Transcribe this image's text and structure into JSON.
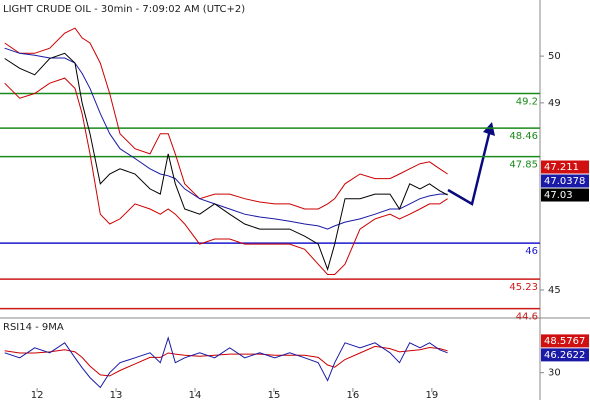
{
  "chart_data": [
    {
      "type": "line",
      "title": "LIGHT CRUDE OIL - 30min - 7:09:02 AM (UTC+2)",
      "x": [
        0.59,
        0.78,
        0.97,
        1.16,
        1.35,
        1.48,
        1.57,
        1.67,
        1.8,
        1.92,
        2.05,
        2.24,
        2.43,
        2.56,
        2.66,
        2.75,
        2.87,
        3.06,
        3.25,
        3.44,
        3.63,
        3.82,
        4.01,
        4.2,
        4.39,
        4.56,
        4.68,
        4.77,
        4.9,
        5.09,
        5.28,
        5.47,
        5.59,
        5.72,
        5.85,
        5.97,
        6.1,
        6.2
      ],
      "series": [
        {
          "color": "#cc0000",
          "values": [
            50.28,
            50.06,
            50.06,
            50.17,
            50.49,
            50.6,
            50.39,
            50.28,
            49.85,
            49.2,
            48.34,
            48.02,
            47.91,
            48.34,
            48.34,
            47.91,
            47.27,
            46.95,
            47.05,
            47.05,
            46.95,
            46.88,
            46.84,
            46.84,
            46.73,
            46.73,
            46.84,
            46.95,
            47.27,
            47.48,
            47.38,
            47.38,
            47.48,
            47.59,
            47.7,
            47.74,
            47.59,
            47.48
          ]
        },
        {
          "color": "#cc0000",
          "values": [
            49.42,
            49.1,
            49.2,
            49.42,
            49.53,
            49.31,
            48.77,
            47.91,
            46.62,
            46.41,
            46.52,
            46.84,
            46.73,
            46.62,
            46.73,
            46.62,
            46.41,
            45.98,
            46.09,
            46.09,
            45.98,
            45.98,
            45.98,
            45.98,
            45.87,
            45.55,
            45.33,
            45.33,
            45.55,
            46.3,
            46.52,
            46.62,
            46.52,
            46.62,
            46.73,
            46.84,
            46.84,
            46.95
          ]
        },
        {
          "color": "#1a1aa6",
          "values": [
            50.17,
            50.06,
            50.02,
            49.96,
            49.96,
            49.85,
            49.63,
            49.31,
            48.77,
            48.34,
            48.02,
            47.81,
            47.59,
            47.48,
            47.44,
            47.38,
            47.16,
            46.95,
            46.84,
            46.73,
            46.62,
            46.56,
            46.52,
            46.47,
            46.41,
            46.37,
            46.3,
            46.37,
            46.45,
            46.52,
            46.62,
            46.73,
            46.73,
            46.84,
            46.95,
            47.01,
            47.05,
            47.05
          ]
        },
        {
          "color": "#000000",
          "values": [
            49.95,
            49.74,
            49.6,
            49.95,
            50.06,
            49.85,
            49.0,
            48.34,
            47.27,
            47.48,
            47.59,
            47.48,
            47.16,
            47.05,
            47.91,
            47.27,
            46.73,
            46.62,
            46.84,
            46.62,
            46.41,
            46.3,
            46.3,
            46.3,
            46.15,
            45.98,
            45.44,
            45.98,
            46.95,
            46.95,
            47.05,
            47.05,
            46.73,
            47.27,
            47.16,
            47.27,
            47.12,
            47.03
          ]
        }
      ],
      "xlim": [
        0.53,
        7.37
      ],
      "ylim": [
        44.4,
        51.2
      ],
      "yticks": [
        45,
        49,
        50
      ],
      "levels": [
        {
          "value": 49.2,
          "color": "#1a8a1a"
        },
        {
          "value": 48.46,
          "color": "#1a8a1a"
        },
        {
          "value": 47.85,
          "color": "#1a8a1a"
        },
        {
          "value": 46,
          "color": "#1a1acc"
        },
        {
          "value": 45.23,
          "color": "#cc1a1a"
        },
        {
          "value": 44.6,
          "color": "#cc1a1a"
        }
      ],
      "markers": [
        {
          "value": 47.211,
          "color": "#d01010"
        },
        {
          "value": 47.0378,
          "color": "#1a1aa6"
        },
        {
          "value": 47.03,
          "color": "#000000"
        }
      ]
    },
    {
      "type": "line",
      "title": "RSI14 - 9MA",
      "x": [
        0.59,
        0.78,
        0.97,
        1.16,
        1.35,
        1.48,
        1.57,
        1.67,
        1.8,
        1.92,
        2.05,
        2.24,
        2.43,
        2.56,
        2.66,
        2.75,
        2.87,
        3.06,
        3.25,
        3.44,
        3.63,
        3.82,
        4.01,
        4.2,
        4.39,
        4.56,
        4.68,
        4.77,
        4.9,
        5.09,
        5.28,
        5.47,
        5.59,
        5.72,
        5.85,
        5.97,
        6.1,
        6.2
      ],
      "series": [
        {
          "color": "#cc0000",
          "values": [
            50,
            48,
            48,
            49,
            51,
            49,
            44,
            36,
            28,
            27,
            32,
            38,
            44,
            44,
            48,
            47,
            46,
            45,
            46,
            47,
            47,
            47,
            46,
            46,
            46,
            44,
            37,
            35,
            42,
            48,
            54,
            52,
            49,
            50,
            51,
            53,
            52,
            50
          ]
        },
        {
          "color": "#1a1aa6",
          "values": [
            48.2,
            43.6,
            52.7,
            48.2,
            57.3,
            43.6,
            34.5,
            25.5,
            16.4,
            30,
            39.1,
            43.6,
            48.2,
            39.1,
            61.8,
            39.1,
            43.6,
            48.2,
            43.6,
            52.7,
            43.6,
            48.2,
            43.6,
            48.2,
            43.6,
            39.1,
            22.7,
            39.1,
            57.3,
            52.7,
            57.3,
            48.2,
            39.1,
            57.3,
            52.7,
            57.3,
            50.9,
            48.2
          ]
        }
      ],
      "xlim": [
        0.53,
        7.37
      ],
      "ylim": [
        5,
        80
      ],
      "yticks": [
        30
      ],
      "xticks": [
        {
          "value": 1,
          "label": "12"
        },
        {
          "value": 2,
          "label": "13"
        },
        {
          "value": 3,
          "label": "14"
        },
        {
          "value": 4,
          "label": "15"
        },
        {
          "value": 5,
          "label": "16"
        },
        {
          "value": 6,
          "label": "19"
        }
      ],
      "markers": [
        {
          "value": 48.5767,
          "color": "#d01010"
        },
        {
          "value": 46.2622,
          "color": "#1a1aa6"
        }
      ]
    }
  ]
}
